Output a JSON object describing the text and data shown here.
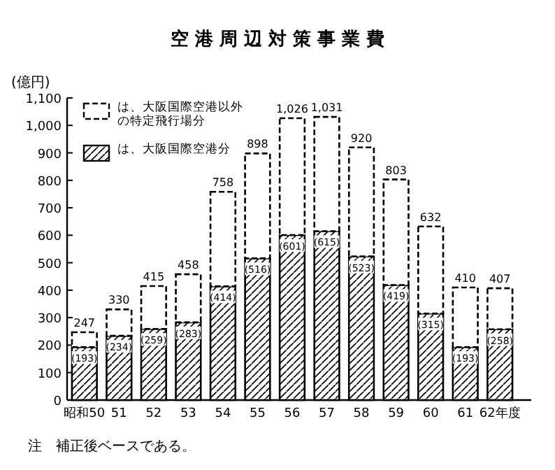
{
  "chart_data": {
    "type": "bar",
    "title": "空 港 周 辺 対 策 事 業 費",
    "ylabel": "(億円)",
    "categories": [
      "昭和50",
      "51",
      "52",
      "53",
      "54",
      "55",
      "56",
      "57",
      "58",
      "59",
      "60",
      "61",
      "62年度"
    ],
    "stacked": true,
    "series": [
      {
        "name": "は、大阪国際空港分",
        "color": "#000000",
        "line_style": "solid",
        "values": [
          193,
          234,
          259,
          283,
          414,
          516,
          601,
          615,
          523,
          419,
          315,
          193,
          258
        ],
        "value_labels": [
          "(193)",
          "(234)",
          "(259)",
          "(283)",
          "(414)",
          "(516)",
          "(601)",
          "(615)",
          "(523)",
          "(419)",
          "(315)",
          "(193)",
          "(258)"
        ]
      },
      {
        "name": "は、大阪国際空港以外の特定飛行場分",
        "color": "#000000",
        "line_style": "dashed",
        "values": [
          54,
          96,
          156,
          175,
          344,
          382,
          425,
          416,
          397,
          384,
          317,
          217,
          149
        ]
      }
    ],
    "totals": [
      "247",
      "330",
      "415",
      "458",
      "758",
      "898",
      "1,026",
      "1,031",
      "920",
      "803",
      "632",
      "410",
      "407"
    ],
    "ylim": [
      0,
      1100
    ],
    "yticks": [
      0,
      100,
      200,
      300,
      400,
      500,
      600,
      700,
      800,
      900,
      {
        "value": 1000,
        "label": "1,000"
      },
      {
        "value": 1100,
        "label": "1,100"
      }
    ],
    "grid": false,
    "legend": "top left",
    "annotations": [
      "注　補正後ベースである。"
    ]
  }
}
